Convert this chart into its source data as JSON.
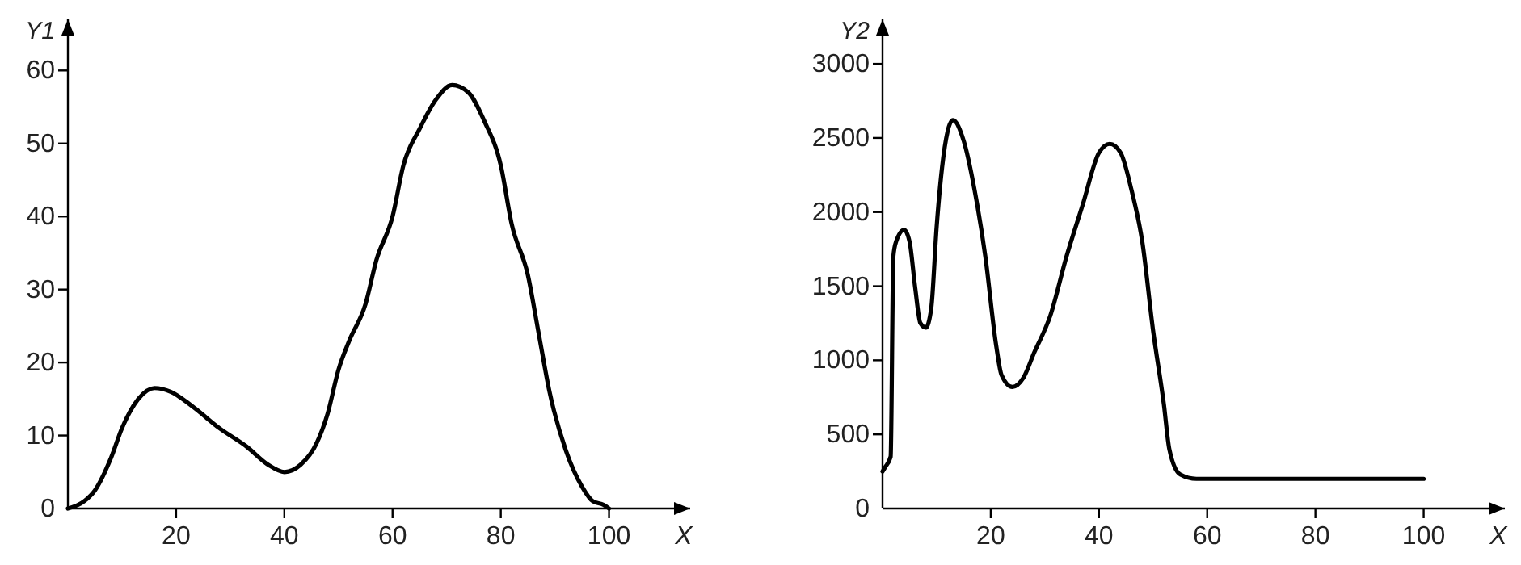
{
  "chart_data": [
    {
      "type": "line",
      "ylabel": "Y1",
      "xlabel": "X",
      "xlim": [
        0,
        115
      ],
      "ylim": [
        0,
        67
      ],
      "xticks": [
        20,
        40,
        60,
        80,
        100
      ],
      "yticks": [
        0,
        10,
        20,
        30,
        40,
        50,
        60
      ],
      "color": "#000000",
      "grid": false,
      "marker": "none",
      "line_style": "solid",
      "x": [
        0,
        3,
        5,
        8,
        10,
        13,
        16,
        19,
        23,
        28,
        33,
        37,
        40,
        43,
        46,
        48,
        50,
        52,
        55,
        57,
        60,
        62,
        65,
        68,
        71,
        74,
        77,
        80,
        82,
        85,
        87,
        89,
        92,
        95,
        97,
        99,
        100
      ],
      "values": [
        0,
        1,
        2.5,
        7,
        11,
        15,
        16.5,
        16,
        14,
        11,
        8.5,
        6,
        5,
        6,
        9,
        13,
        19,
        23,
        28,
        34,
        40,
        47,
        52,
        56,
        58,
        57,
        53,
        47,
        39,
        32,
        24,
        16,
        8,
        3,
        1,
        0.5,
        0
      ]
    },
    {
      "type": "line",
      "ylabel": "Y2",
      "xlabel": "X",
      "xlim": [
        0,
        115
      ],
      "ylim": [
        0,
        3300
      ],
      "xticks": [
        20,
        40,
        60,
        80,
        100
      ],
      "yticks": [
        0,
        500,
        1000,
        1500,
        2000,
        2500,
        3000
      ],
      "color": "#000000",
      "grid": false,
      "marker": "none",
      "line_style": "solid",
      "x": [
        0,
        0.5,
        1.5,
        2,
        2.5,
        4,
        5,
        6,
        7,
        8,
        9,
        10,
        11,
        13,
        15,
        17,
        19,
        21,
        22,
        24,
        26,
        28,
        31,
        34,
        37,
        40,
        42,
        44,
        46,
        48,
        50,
        52,
        53,
        55,
        58,
        70,
        100
      ],
      "values": [
        250,
        280,
        350,
        1700,
        1800,
        1880,
        1800,
        1500,
        1250,
        1220,
        1350,
        1900,
        2300,
        2620,
        2480,
        2150,
        1700,
        1100,
        900,
        820,
        880,
        1050,
        1300,
        1700,
        2050,
        2400,
        2460,
        2400,
        2150,
        1800,
        1200,
        700,
        400,
        230,
        200,
        200,
        200
      ]
    }
  ]
}
